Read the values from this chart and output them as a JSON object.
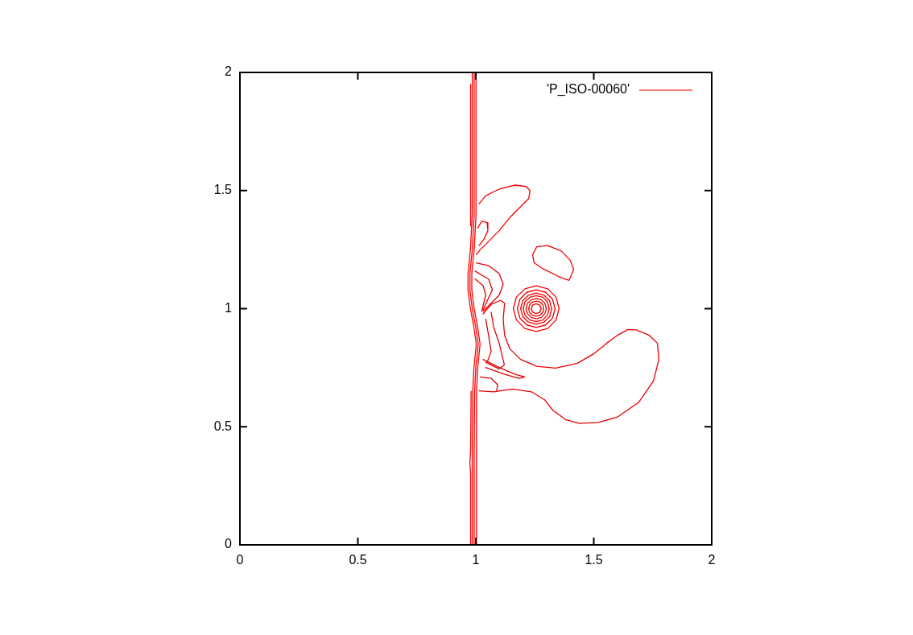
{
  "chart_data": {
    "type": "line",
    "legend": "top right",
    "xlim": [
      0,
      2
    ],
    "ylim": [
      0,
      2
    ],
    "xticks": [
      0,
      0.5,
      1,
      1.5,
      2
    ],
    "yticks": [
      0,
      0.5,
      1,
      1.5,
      2
    ],
    "marker": "none",
    "line_style": "solid",
    "series": [
      {
        "name": "'P_ISO-00060'",
        "color": "#ff0000",
        "x": [
          0.985,
          0.985,
          0.987,
          0.992,
          1.002,
          0.992,
          0.977,
          0.967,
          0.967,
          0.977,
          0.985,
          0.985
        ],
        "values": [
          0,
          0.4,
          0.65,
          0.75,
          0.85,
          0.92,
          1.0,
          1.08,
          1.15,
          1.25,
          1.4,
          2.0
        ]
      },
      {
        "color": "#fe0000",
        "x": [
          0.993,
          0.993,
          0.995,
          1.0,
          1.01,
          1.0,
          0.985,
          0.975,
          0.975,
          0.985,
          0.993,
          0.993
        ],
        "values": [
          0,
          0.4,
          0.65,
          0.75,
          0.85,
          0.92,
          1.0,
          1.08,
          1.15,
          1.25,
          1.4,
          2.0
        ]
      },
      {
        "color": "#fd0000",
        "x": [
          1.001,
          1.003,
          1.008,
          1.018,
          1.008,
          0.993,
          0.983,
          0.983,
          0.993,
          1.001,
          1.001
        ],
        "values": [
          0,
          0.65,
          0.75,
          0.85,
          0.92,
          1.0,
          1.08,
          1.15,
          1.25,
          1.4,
          2.0
        ]
      },
      {
        "color": "#fc0000",
        "x": [
          0.978,
          0.978,
          0.975,
          0.978,
          0.98
        ],
        "values": [
          0,
          0.3,
          0.35,
          0.4,
          0.65
        ]
      },
      {
        "color": "#fb0000",
        "x": [
          0.978,
          0.978
        ],
        "values": [
          1.35,
          1.95
        ]
      },
      {
        "color": "#fa0000",
        "x": [
          1.014,
          1.042,
          1.099,
          1.167,
          1.213,
          1.23,
          1.224,
          1.19,
          1.145,
          1.099,
          1.054,
          1.019,
          1.002
        ],
        "values": [
          1.444,
          1.478,
          1.506,
          1.523,
          1.517,
          1.5,
          1.466,
          1.432,
          1.387,
          1.33,
          1.284,
          1.25,
          1.228
        ]
      },
      {
        "color": "#f90000",
        "x": [
          1.008,
          1.025,
          1.048,
          1.051,
          1.036,
          1.014
        ],
        "values": [
          1.341,
          1.37,
          1.364,
          1.33,
          1.296,
          1.267
        ]
      },
      {
        "color": "#f80000",
        "x": [
          1.241,
          1.258,
          1.304,
          1.361,
          1.4,
          1.415
        ],
        "values": [
          1.228,
          1.262,
          1.267,
          1.245,
          1.205,
          1.165
        ]
      },
      {
        "color": "#f70000",
        "x": [
          1.415,
          1.395,
          1.349,
          1.281,
          1.247,
          1.241
        ],
        "values": [
          1.165,
          1.12,
          1.137,
          1.171,
          1.194,
          1.228
        ]
      },
      {
        "color": "#f60000",
        "x": [
          1.353,
          1.34,
          1.305,
          1.256,
          1.208,
          1.172,
          1.159
        ],
        "values": [
          1,
          1.049,
          1.084,
          1.097,
          1.084,
          1.049,
          1
        ]
      },
      {
        "color": "#f50000",
        "x": [
          1.159,
          1.172,
          1.208,
          1.256,
          1.305,
          1.34,
          1.353
        ],
        "values": [
          1,
          0.952,
          0.916,
          0.903,
          0.916,
          0.952,
          1
        ]
      },
      {
        "color": "#f40000",
        "x": [
          1.336,
          1.325,
          1.296,
          1.256,
          1.216,
          1.187,
          1.176
        ],
        "values": [
          1,
          1.04,
          1.069,
          1.08,
          1.069,
          1.04,
          1
        ]
      },
      {
        "color": "#f30000",
        "x": [
          1.176,
          1.187,
          1.216,
          1.256,
          1.296,
          1.325,
          1.336
        ],
        "values": [
          1,
          0.96,
          0.931,
          0.92,
          0.931,
          0.96,
          1
        ]
      },
      {
        "color": "#f20000",
        "x": [
          1.322,
          1.313,
          1.289,
          1.256,
          1.223,
          1.199,
          1.19
        ],
        "values": [
          1,
          1.033,
          1.057,
          1.066,
          1.057,
          1.033,
          1
        ]
      },
      {
        "color": "#f10000",
        "x": [
          1.19,
          1.199,
          1.223,
          1.256,
          1.289,
          1.313,
          1.322
        ],
        "values": [
          1,
          0.967,
          0.943,
          0.934,
          0.943,
          0.967,
          1
        ]
      },
      {
        "color": "#f00000",
        "x": [
          1.311,
          1.304,
          1.284,
          1.256,
          1.229,
          1.208,
          1.201
        ],
        "values": [
          1,
          1.028,
          1.048,
          1.055,
          1.048,
          1.028,
          1
        ]
      },
      {
        "color": "#ef0000",
        "x": [
          1.201,
          1.208,
          1.229,
          1.256,
          1.284,
          1.304,
          1.311
        ],
        "values": [
          1,
          0.973,
          0.952,
          0.945,
          0.952,
          0.973,
          1
        ]
      },
      {
        "color": "#ee0000",
        "x": [
          1.299,
          1.293,
          1.278,
          1.256,
          1.235,
          1.219,
          1.213
        ],
        "values": [
          1,
          1.022,
          1.037,
          1.043,
          1.037,
          1.022,
          1
        ]
      },
      {
        "color": "#ed0000",
        "x": [
          1.213,
          1.219,
          1.235,
          1.256,
          1.278,
          1.293,
          1.299
        ],
        "values": [
          1,
          0.979,
          0.963,
          0.957,
          0.963,
          0.979,
          1
        ]
      },
      {
        "color": "#ec0000",
        "x": [
          1.288,
          1.284,
          1.272,
          1.256,
          1.24,
          1.228,
          1.224
        ],
        "values": [
          1,
          1.016,
          1.028,
          1.032,
          1.028,
          1.016,
          1
        ]
      },
      {
        "color": "#eb0000",
        "x": [
          1.224,
          1.228,
          1.24,
          1.256,
          1.272,
          1.284,
          1.288
        ],
        "values": [
          1,
          0.984,
          0.972,
          0.968,
          0.972,
          0.984,
          1
        ]
      },
      {
        "color": "#ea0000",
        "x": [
          1.277,
          1.271,
          1.256,
          1.241,
          1.235
        ],
        "values": [
          1,
          1.015,
          1.021,
          1.015,
          1
        ]
      },
      {
        "color": "#e90000",
        "x": [
          1.235,
          1.241,
          1.256,
          1.271,
          1.277
        ],
        "values": [
          1,
          0.985,
          0.979,
          0.985,
          1
        ]
      },
      {
        "color": "#e80000",
        "x": [
          1.014,
          1.076,
          1.156,
          1.235,
          1.292,
          1.327,
          1.383,
          1.44,
          1.52,
          1.6,
          1.69,
          1.753,
          1.776,
          1.77,
          1.736,
          1.679,
          1.645,
          1.6,
          1.554,
          1.497,
          1.429,
          1.338,
          1.258,
          1.19,
          1.144,
          1.122,
          1.116,
          1.122,
          1.105,
          1.065,
          1.031
        ],
        "values": [
          0.652,
          0.648,
          0.66,
          0.648,
          0.614,
          0.569,
          0.529,
          0.514,
          0.518,
          0.541,
          0.603,
          0.694,
          0.785,
          0.853,
          0.887,
          0.91,
          0.912,
          0.887,
          0.853,
          0.807,
          0.768,
          0.748,
          0.756,
          0.785,
          0.83,
          0.887,
          0.955,
          1.023,
          1.035,
          1.018,
          0.978
        ]
      },
      {
        "color": "#e70000",
        "x": [
          1.002,
          1.054,
          1.099,
          1.116,
          1.099,
          1.065,
          1.031
        ],
        "values": [
          1.194,
          1.182,
          1.148,
          1.103,
          1.057,
          1.023,
          0.989
        ]
      },
      {
        "color": "#e60000",
        "x": [
          0.997,
          1.054,
          1.07,
          1.031
        ],
        "values": [
          1.159,
          1.125,
          1.08,
          0.995
        ]
      },
      {
        "color": "#e50000",
        "x": [
          0.997,
          1.031,
          1.042,
          1.025
        ],
        "values": [
          1.125,
          1.097,
          1.057,
          0.989
        ]
      },
      {
        "color": "#e40000",
        "x": [
          1.065,
          1.076,
          1.099,
          1.121,
          1.099,
          1.042
        ],
        "values": [
          0.984,
          0.921,
          0.853,
          0.762,
          0.745,
          0.773
        ]
      },
      {
        "color": "#e30000",
        "x": [
          1.042,
          1.054,
          1.065,
          1.048
        ],
        "values": [
          0.955,
          0.887,
          0.819,
          0.773
        ]
      },
      {
        "color": "#e20000",
        "x": [
          1.031,
          1.099,
          1.167,
          1.207,
          1.184,
          1.122,
          1.042
        ],
        "values": [
          0.785,
          0.751,
          0.722,
          0.711,
          0.705,
          0.722,
          0.751
        ]
      },
      {
        "color": "#e10000",
        "x": [
          1.019,
          1.065,
          1.093,
          1.088
        ],
        "values": [
          0.711,
          0.705,
          0.677,
          0.654
        ]
      }
    ]
  }
}
